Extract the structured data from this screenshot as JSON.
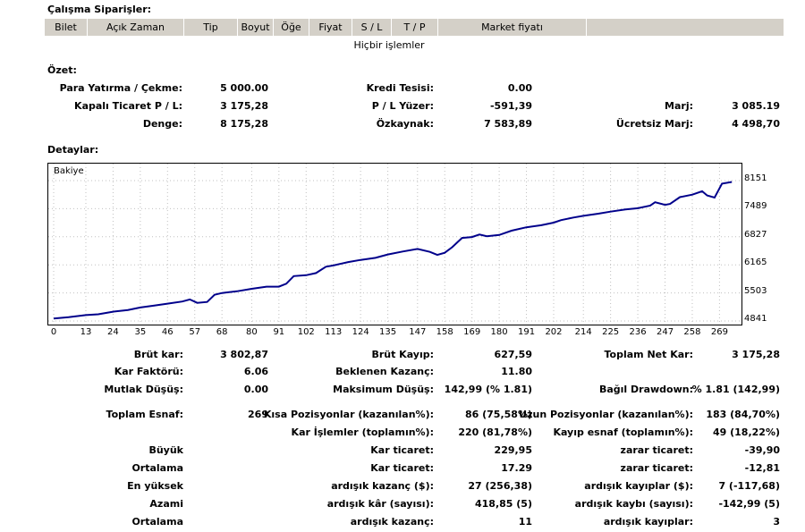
{
  "orders": {
    "title": "Çalışma Siparişler:",
    "columns": [
      "Bilet",
      "Açık Zaman",
      "Tip",
      "Boyut",
      "Öğe",
      "Fiyat",
      "S / L",
      "T / P",
      "Market fiyatı"
    ],
    "empty_text": "Hiçbir işlemler"
  },
  "summary": {
    "title": "Özet:",
    "deposit_label": "Para Yatırma / Çekme:",
    "deposit_value": "5 000.00",
    "credit_label": "Kredi Tesisi:",
    "credit_value": "0.00",
    "closed_pl_label": "Kapalı Ticaret P / L:",
    "closed_pl_value": "3 175,28",
    "floating_pl_label": "P / L Yüzer:",
    "floating_pl_value": "-591,39",
    "margin_label": "Marj:",
    "margin_value": "3 085.19",
    "balance_label": "Denge:",
    "balance_value": "8 175,28",
    "equity_label": "Özkaynak:",
    "equity_value": "7 583,89",
    "free_margin_label": "Ücretsiz Marj:",
    "free_margin_value": "4 498,70"
  },
  "details": {
    "title": "Detaylar:"
  },
  "chart_data": {
    "type": "line",
    "legend": "Bakiye",
    "series_color": "#00008b",
    "x_ticks": [
      0,
      13,
      24,
      35,
      46,
      57,
      68,
      80,
      91,
      102,
      113,
      124,
      135,
      147,
      158,
      169,
      180,
      191,
      202,
      214,
      225,
      236,
      247,
      258,
      269
    ],
    "y_ticks": [
      "8151",
      "7489",
      "6827",
      "6165",
      "5503",
      "4841"
    ],
    "ylim": [
      4841,
      8151
    ],
    "xlim": [
      0,
      275
    ],
    "points": [
      [
        0,
        4900
      ],
      [
        6,
        4930
      ],
      [
        13,
        4980
      ],
      [
        18,
        5000
      ],
      [
        24,
        5060
      ],
      [
        30,
        5100
      ],
      [
        35,
        5160
      ],
      [
        40,
        5200
      ],
      [
        46,
        5250
      ],
      [
        52,
        5300
      ],
      [
        55,
        5350
      ],
      [
        58,
        5270
      ],
      [
        62,
        5290
      ],
      [
        65,
        5460
      ],
      [
        68,
        5500
      ],
      [
        74,
        5540
      ],
      [
        80,
        5600
      ],
      [
        86,
        5650
      ],
      [
        91,
        5650
      ],
      [
        94,
        5720
      ],
      [
        97,
        5900
      ],
      [
        102,
        5920
      ],
      [
        106,
        5970
      ],
      [
        110,
        6120
      ],
      [
        113,
        6150
      ],
      [
        119,
        6230
      ],
      [
        124,
        6280
      ],
      [
        130,
        6330
      ],
      [
        135,
        6410
      ],
      [
        141,
        6480
      ],
      [
        147,
        6540
      ],
      [
        152,
        6470
      ],
      [
        155,
        6400
      ],
      [
        158,
        6450
      ],
      [
        161,
        6580
      ],
      [
        165,
        6800
      ],
      [
        169,
        6820
      ],
      [
        172,
        6880
      ],
      [
        175,
        6840
      ],
      [
        180,
        6870
      ],
      [
        185,
        6970
      ],
      [
        191,
        7050
      ],
      [
        197,
        7100
      ],
      [
        202,
        7160
      ],
      [
        205,
        7220
      ],
      [
        210,
        7280
      ],
      [
        214,
        7320
      ],
      [
        220,
        7370
      ],
      [
        225,
        7420
      ],
      [
        231,
        7470
      ],
      [
        236,
        7500
      ],
      [
        241,
        7560
      ],
      [
        243,
        7640
      ],
      [
        247,
        7580
      ],
      [
        249,
        7600
      ],
      [
        253,
        7760
      ],
      [
        258,
        7820
      ],
      [
        262,
        7900
      ],
      [
        264,
        7800
      ],
      [
        267,
        7750
      ],
      [
        270,
        8080
      ],
      [
        274,
        8120
      ]
    ]
  },
  "stats": {
    "gross_profit_label": "Brüt kar:",
    "gross_profit_value": "3 802,87",
    "gross_loss_label": "Brüt Kayıp:",
    "gross_loss_value": "627,59",
    "total_net_label": "Toplam Net Kar:",
    "total_net_value": "3 175,28",
    "profit_factor_label": "Kar Faktörü:",
    "profit_factor_value": "6.06",
    "expected_payoff_label": "Beklenen Kazanç:",
    "expected_payoff_value": "11.80",
    "abs_drawdown_label": "Mutlak Düşüş:",
    "abs_drawdown_value": "0.00",
    "max_drawdown_label": "Maksimum Düşüş:",
    "max_drawdown_value": "142,99 (% 1.81)",
    "rel_drawdown_label": "Bağıl Drawdown:",
    "rel_drawdown_value": "% 1.81 (142,99)",
    "total_trades_label": "Toplam Esnaf:",
    "total_trades_value": "269",
    "short_label": "Kısa Pozisyonlar (kazanılan%):",
    "short_value": "86 (75,58%)",
    "long_label": "Uzun Pozisyonlar (kazanılan%):",
    "long_value": "183 (84,70%)",
    "profit_trades_label": "Kar İşlemler (toplamın%):",
    "profit_trades_value": "220 (81,78%)",
    "loss_trades_label": "Kayıp esnaf (toplamın%):",
    "loss_trades_value": "49 (18,22%)",
    "largest_label": "Büyük",
    "largest_profit_label": "Kar ticaret:",
    "largest_profit_value": "229,95",
    "largest_loss_label": "zarar ticaret:",
    "largest_loss_value": "-39,90",
    "average_label": "Ortalama",
    "avg_profit_label": "Kar ticaret:",
    "avg_profit_value": "17.29",
    "avg_loss_label": "zarar ticaret:",
    "avg_loss_value": "-12,81",
    "maximum_label": "En yüksek",
    "max_consec_wins_label": "ardışık kazanç ($):",
    "max_consec_wins_value": "27 (256,38)",
    "max_consec_losses_label": "ardışık kayıplar ($):",
    "max_consec_losses_value": "7 (-117,68)",
    "maximal_label": "Azami",
    "maximal_consec_profit_label": "ardışık kâr (sayısı):",
    "maximal_consec_profit_value": "418,85 (5)",
    "maximal_consec_loss_label": "ardışık kaybı (sayısı):",
    "maximal_consec_loss_value": "-142,99 (5)",
    "average2_label": "Ortalama",
    "avg_consec_wins_label": "ardışık kazanç:",
    "avg_consec_wins_value": "11",
    "avg_consec_losses_label": "ardışık kayıplar:",
    "avg_consec_losses_value": "3"
  }
}
